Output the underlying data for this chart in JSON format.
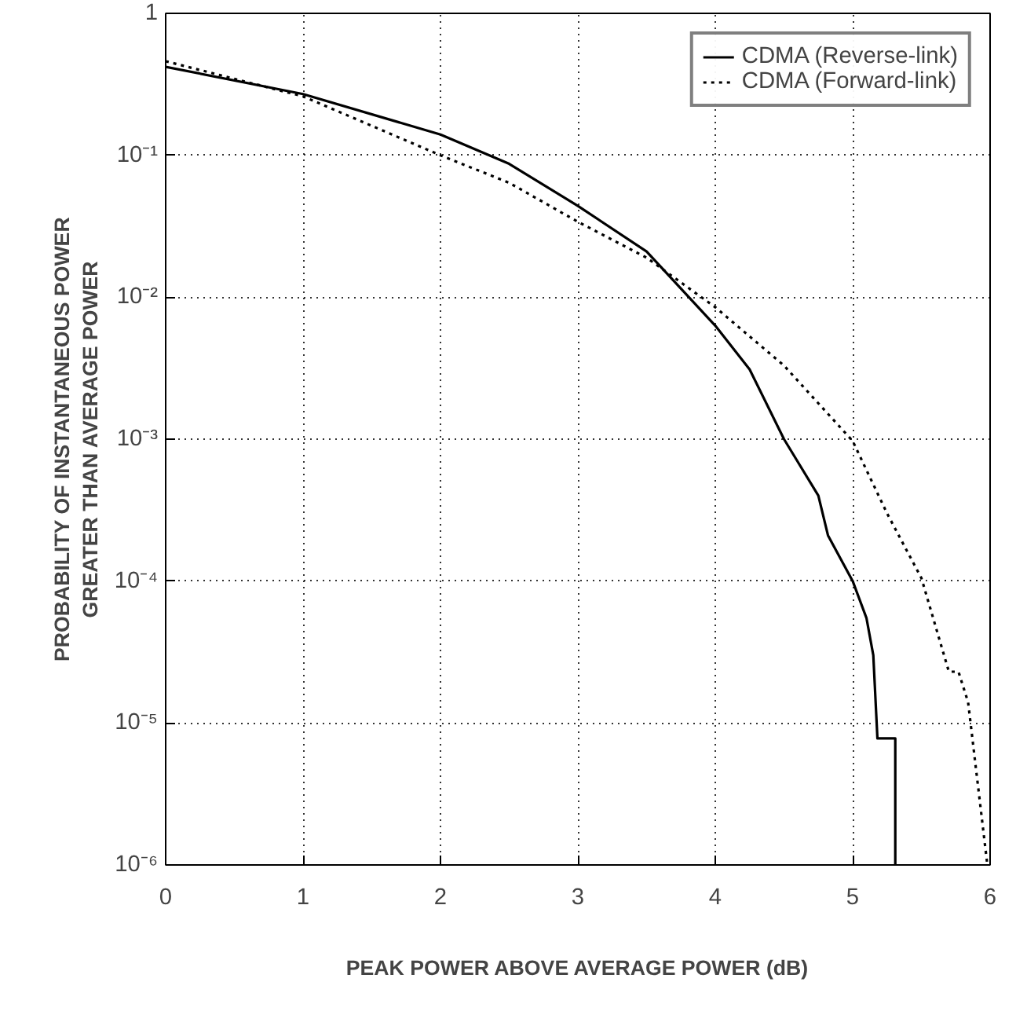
{
  "chart_data": {
    "type": "line",
    "xlabel": "PEAK POWER ABOVE AVERAGE POWER (dB)",
    "ylabel": "PROBABILITY OF INSTANTANEOUS POWER\nGREATER THAN AVERAGE POWER",
    "log": "y",
    "xlim": [
      0,
      6
    ],
    "ylim": [
      1e-06,
      1
    ],
    "xticks": [
      0,
      1,
      2,
      3,
      4,
      5,
      6
    ],
    "yticks": [
      {
        "value": 1,
        "label": "1"
      },
      {
        "value": 0.1,
        "label": "10⁻¹"
      },
      {
        "value": 0.01,
        "label": "10⁻²"
      },
      {
        "value": 0.001,
        "label": "10⁻³"
      },
      {
        "value": 0.0001,
        "label": "10⁻⁴"
      },
      {
        "value": 1e-05,
        "label": "10⁻⁵"
      },
      {
        "value": 1e-06,
        "label": "10⁻⁶"
      }
    ],
    "grid": true,
    "legend": "top right",
    "series": [
      {
        "name": "CDMA (Reverse-link)",
        "color": "#000000",
        "line_style": "solid",
        "x": [
          0,
          1,
          2,
          2.5,
          3,
          3.5,
          4,
          4.25,
          4.5,
          4.75,
          4.82,
          5,
          5.1,
          5.15,
          5.18,
          5.31,
          5.31
        ],
        "values": [
          0.42,
          0.27,
          0.14,
          0.087,
          0.044,
          0.021,
          0.0063,
          0.0031,
          0.001,
          0.0004,
          0.00021,
          0.0001,
          5.5e-05,
          3e-05,
          7.8e-06,
          7.8e-06,
          1e-06
        ]
      },
      {
        "name": "CDMA (Forward-link)",
        "color": "#000000",
        "line_style": "dotted",
        "x": [
          0,
          1,
          2,
          2.5,
          3,
          3.5,
          4,
          4.5,
          5,
          5.25,
          5.5,
          5.7,
          5.77,
          5.84,
          5.98
        ],
        "values": [
          0.46,
          0.26,
          0.1,
          0.064,
          0.034,
          0.019,
          0.0085,
          0.0033,
          0.00097,
          0.0003,
          0.000105,
          2.3e-05,
          2.3e-05,
          1.4e-05,
          1e-06
        ]
      }
    ]
  }
}
